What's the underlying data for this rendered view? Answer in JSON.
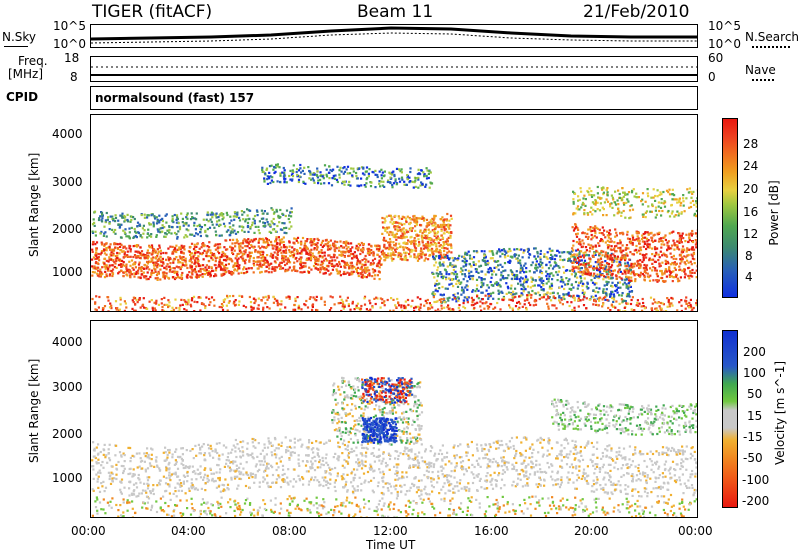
{
  "header": {
    "radar": "TIGER (fitACF)",
    "beam": "Beam 11",
    "date": "21/Feb/2010"
  },
  "noise_panel": {
    "left_label": "N.Sky",
    "right_label": "N.Search",
    "left_ticks": [
      "10^5",
      "10^0"
    ],
    "right_ticks": [
      "10^5",
      "10^0"
    ]
  },
  "freq_panel": {
    "left_label_1": "Freq.",
    "left_label_2": "[MHz]",
    "right_label": "Nave",
    "left_ticks": [
      "18",
      "8"
    ],
    "right_ticks": [
      "60",
      "0"
    ]
  },
  "cpid_panel": {
    "label": "CPID",
    "value": "normalsound (fast) 157"
  },
  "power_panel": {
    "ylabel": "Slant Range [km]",
    "yticks": [
      "4000",
      "3000",
      "2000",
      "1000"
    ],
    "colorbar_label": "Power [dB]",
    "colorbar_ticks": [
      "28",
      "24",
      "20",
      "16",
      "12",
      "8",
      "4"
    ],
    "colors": [
      "#1030e0",
      "#2860b8",
      "#3c8a70",
      "#50a850",
      "#a0c840",
      "#e8d040",
      "#f0a020",
      "#f07020",
      "#ee4020",
      "#e81810"
    ]
  },
  "velocity_panel": {
    "ylabel": "Slant Range [km]",
    "yticks": [
      "4000",
      "3000",
      "2000",
      "1000"
    ],
    "colorbar_label": "Velocity [m s^-1]",
    "colorbar_ticks": [
      "200",
      "100",
      "50",
      "15",
      "-15",
      "-50",
      "-100",
      "-200"
    ],
    "colors": [
      "#1030d0",
      "#2858c8",
      "#40a850",
      "#70c840",
      "#c8c8c8",
      "#c8c8c8",
      "#f0b030",
      "#f08820",
      "#f05818",
      "#e81810"
    ]
  },
  "xaxis": {
    "ticks": [
      "00:00",
      "04:00",
      "08:00",
      "12:00",
      "16:00",
      "20:00",
      "00:00"
    ],
    "label": "Time UT"
  }
}
